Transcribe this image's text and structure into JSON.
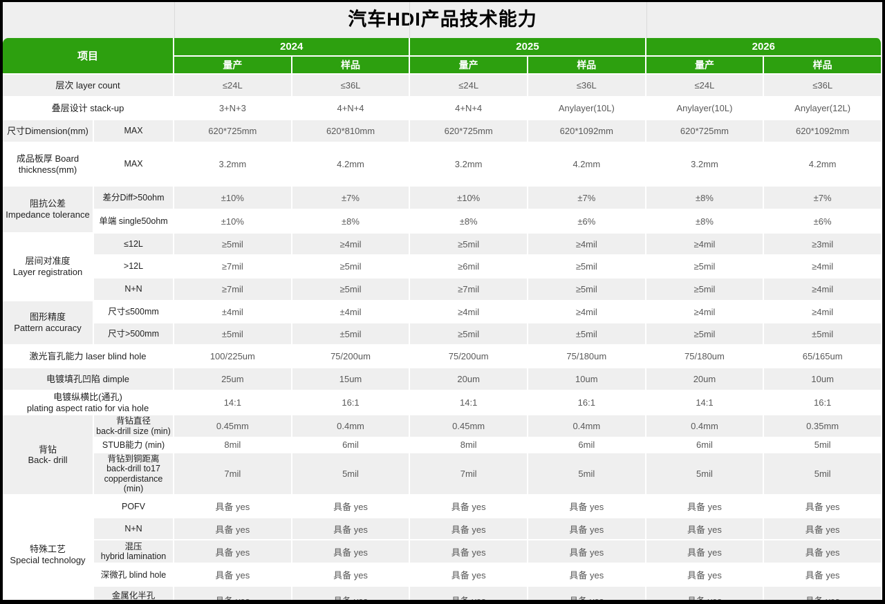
{
  "title": "汽车HDI产品技术能力",
  "table": {
    "header": {
      "item_label": "项目",
      "years": [
        "2024",
        "2025",
        "2026"
      ],
      "sub_headers": [
        "量产",
        "样品"
      ]
    },
    "rows": [
      {
        "label": "层次  layer count",
        "values": [
          "≤24L",
          "≤36L",
          "≤24L",
          "≤36L",
          "≤24L",
          "≤36L"
        ]
      },
      {
        "label": "叠层设计 stack-up",
        "values": [
          "3+N+3",
          "4+N+4",
          "4+N+4",
          "Anylayer(10L)",
          "Anylayer(10L)",
          "Anylayer(12L)"
        ]
      },
      {
        "group": {
          "label": "尺寸Dimension(mm)",
          "rowspan": 1
        },
        "sub": "MAX",
        "values": [
          "620*725mm",
          "620*810mm",
          "620*725mm",
          "620*1092mm",
          "620*725mm",
          "620*1092mm"
        ]
      },
      {
        "group": {
          "label": "成品板厚 Board\nthickness(mm)",
          "rowspan": 1
        },
        "sub": "MAX",
        "values": [
          "3.2mm",
          "4.2mm",
          "3.2mm",
          "4.2mm",
          "3.2mm",
          "4.2mm"
        ]
      },
      {
        "group": {
          "label": "阻抗公差\nImpedance tolerance",
          "rowspan": 2
        },
        "sub": "差分Diff>50ohm",
        "values": [
          "±10%",
          "±7%",
          "±10%",
          "±7%",
          "±8%",
          "±7%"
        ]
      },
      {
        "sub": "单端 single50ohm",
        "values": [
          "±10%",
          "±8%",
          "±8%",
          "±6%",
          "±8%",
          "±6%"
        ]
      },
      {
        "group": {
          "label": "层间对准度\nLayer registration",
          "rowspan": 3
        },
        "sub": "≤12L",
        "values": [
          "≥5mil",
          "≥4mil",
          "≥5mil",
          "≥4mil",
          "≥4mil",
          "≥3mil"
        ]
      },
      {
        "sub": ">12L",
        "values": [
          "≥7mil",
          "≥5mil",
          "≥6mil",
          "≥5mil",
          "≥5mil",
          "≥4mil"
        ]
      },
      {
        "sub": "N+N",
        "values": [
          "≥7mil",
          "≥5mil",
          "≥7mil",
          "≥5mil",
          "≥5mil",
          "≥4mil"
        ]
      },
      {
        "group": {
          "label": "图形精度\nPattern accuracy",
          "rowspan": 2
        },
        "sub": "尺寸≤500mm",
        "values": [
          "±4mil",
          "±4mil",
          "≥4mil",
          "≥4mil",
          "≥4mil",
          "≥4mil"
        ]
      },
      {
        "sub": "尺寸>500mm",
        "values": [
          "±5mil",
          "±5mil",
          "≥5mil",
          "±5mil",
          "≥5mil",
          "±5mil"
        ]
      },
      {
        "label": "激光盲孔能力 laser blind hole",
        "values": [
          "100/225um",
          "75/200um",
          "75/200um",
          "75/180um",
          "75/180um",
          "65/165um"
        ]
      },
      {
        "label": "电镀填孔凹陷 dimple",
        "values": [
          "25um",
          "15um",
          "20um",
          "10um",
          "20um",
          "10um"
        ]
      },
      {
        "label": "电镀纵横比(通孔)\nplating aspect ratio for via hole",
        "values": [
          "14:1",
          "16:1",
          "14:1",
          "16:1",
          "14:1",
          "16:1"
        ]
      },
      {
        "group": {
          "label": "背钻\nBack- drill",
          "rowspan": 3
        },
        "sub": "背钻直径\nback-drill size (min)",
        "values": [
          "0.45mm",
          "0.4mm",
          "0.45mm",
          "0.4mm",
          "0.4mm",
          "0.35mm"
        ]
      },
      {
        "sub": "STUB能力 (min)",
        "values": [
          "8mil",
          "6mil",
          "8mil",
          "6mil",
          "6mil",
          "5mil"
        ]
      },
      {
        "sub": "背钻到铜距离\nback-drill to17\ncopperdistance (min)",
        "values": [
          "7mil",
          "5mil",
          "7mil",
          "5mil",
          "5mil",
          "5mil"
        ]
      },
      {
        "group": {
          "label": "特殊工艺\nSpecial  technology",
          "rowspan": 5
        },
        "sub": "POFV",
        "values": [
          "具备 yes",
          "具备 yes",
          "具备 yes",
          "具备 yes",
          "具备 yes",
          "具备 yes"
        ]
      },
      {
        "sub": "N+N",
        "values": [
          "具备 yes",
          "具备 yes",
          "具备 yes",
          "具备 yes",
          "具备 yes",
          "具备 yes"
        ]
      },
      {
        "sub": "混压\nhybrid lamination",
        "values": [
          "具备 yes",
          "具备 yes",
          "具备 yes",
          "具备 yes",
          "具备 yes",
          "具备 yes"
        ]
      },
      {
        "sub": "深微孔 blind hole",
        "values": [
          "具备 yes",
          "具备 yes",
          "具备 yes",
          "具备 yes",
          "具备 yes",
          "具备 yes"
        ]
      },
      {
        "sub": "金属化半孔\nmetallized half hole",
        "values": [
          "具备 yes",
          "具备 yes",
          "具备 yes",
          "具备 yes",
          "具备 yes",
          "具备 yes"
        ]
      }
    ]
  },
  "colors": {
    "header_green": "#2DA00F",
    "row_gray": "#EFEFEF",
    "row_white": "#FFFFFF",
    "frame_black": "#000000"
  }
}
